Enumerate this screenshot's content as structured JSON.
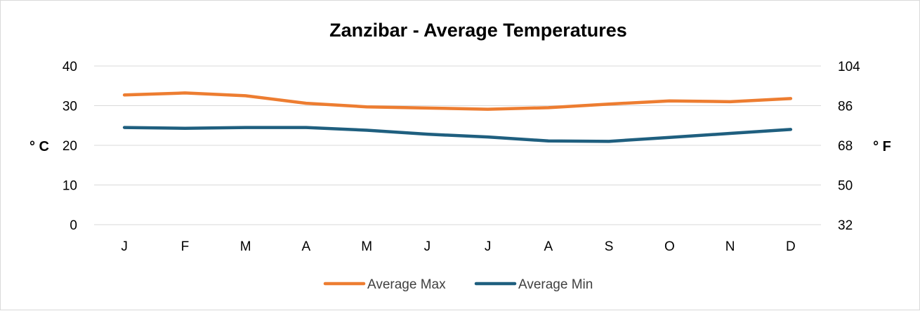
{
  "chart_data": {
    "type": "line",
    "title": "Zanzibar - Average Temperatures",
    "categories": [
      "J",
      "F",
      "M",
      "A",
      "M",
      "J",
      "J",
      "A",
      "S",
      "O",
      "N",
      "D"
    ],
    "series": [
      {
        "name": "Average Max",
        "color": "#ED7D31",
        "values": [
          32.7,
          33.2,
          32.5,
          30.6,
          29.7,
          29.4,
          29.1,
          29.5,
          30.4,
          31.2,
          31.0,
          31.8
        ]
      },
      {
        "name": "Average Min",
        "color": "#1F5F7F",
        "values": [
          24.5,
          24.3,
          24.5,
          24.5,
          23.8,
          22.8,
          22.1,
          21.1,
          21.0,
          22.0,
          23.0,
          24.0
        ]
      }
    ],
    "ylabel": "° C",
    "y2label": "° F",
    "ylim": [
      0,
      40
    ],
    "y_ticks": [
      0,
      10,
      20,
      30,
      40
    ],
    "y2_ticks": [
      32,
      50,
      68,
      86,
      104
    ],
    "grid": true,
    "legend_position": "bottom"
  }
}
